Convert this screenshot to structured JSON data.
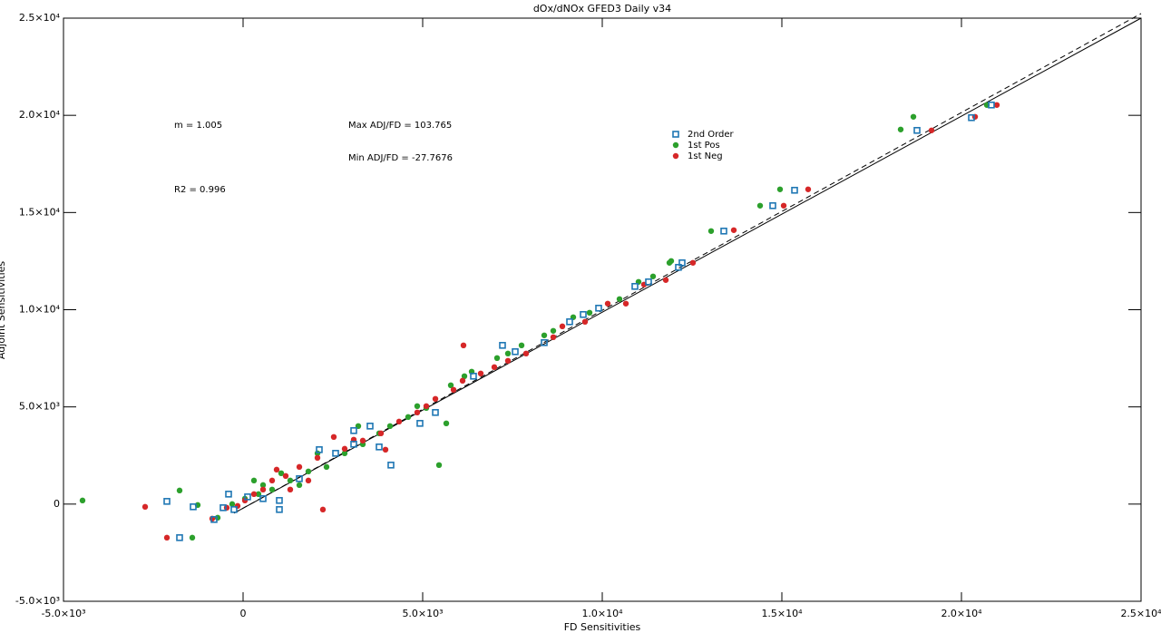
{
  "chart_data": {
    "type": "scatter",
    "title": "dOx/dNOx GFED3 Daily v34",
    "x_label": "FD Sensitivities",
    "y_label": "Adjoint Sensitivities",
    "annotations": [
      "m = 1.005",
      "R2 = 0.996",
      "Max ADJ/FD = 103.765",
      "Min ADJ/FD = -27.7676"
    ],
    "xlim": [
      -5000,
      25000
    ],
    "ylim": [
      -5000,
      25000
    ],
    "xticks": [
      {
        "value": -5000,
        "label": "-5.0×10³"
      },
      0,
      {
        "value": 5000,
        "label": "5.0×10³"
      },
      {
        "value": 10000,
        "label": "1.0×10⁴"
      },
      {
        "value": 15000,
        "label": "1.5×10⁴"
      },
      {
        "value": 20000,
        "label": "2.0×10⁴"
      },
      {
        "value": 25000,
        "label": "2.5×10⁴"
      }
    ],
    "yticks": [
      {
        "value": -5000,
        "label": "-5.0×10³"
      },
      0,
      {
        "value": 5000,
        "label": "5.0×10³"
      },
      {
        "value": 10000,
        "label": "1.0×10⁴"
      },
      {
        "value": 15000,
        "label": "1.5×10⁴"
      },
      {
        "value": 20000,
        "label": "2.0×10⁴"
      },
      {
        "value": 25000,
        "label": "2.5×10⁴"
      }
    ],
    "series": [
      {
        "name": "2nd Order",
        "color": "#1f77b4",
        "marker": "square",
        "x": [
          20833,
          18763,
          20278,
          15354,
          14747,
          13384,
          12222,
          12121,
          11288,
          9470,
          9091,
          7222,
          7576,
          8384,
          6414,
          4924,
          4116,
          3788,
          3535,
          3081,
          3081,
          2121,
          1010,
          1010,
          -1389,
          -2121,
          -1768,
          -808,
          -556,
          -404,
          126,
          556,
          1566,
          2576,
          5354,
          9899,
          10909,
          -253
        ],
        "y": [
          20532,
          19225,
          19879,
          16146,
          15352,
          14046,
          12413,
          12180,
          11433,
          9753,
          9379,
          8166,
          7840,
          8306,
          6580,
          4153,
          2007,
          2940,
          4013,
          3780,
          3080,
          2800,
          187,
          -280,
          -140,
          140,
          -1727,
          -793,
          -187,
          513,
          373,
          280,
          1307,
          2613,
          4713,
          10079,
          11199,
          -280
        ]
      },
      {
        "name": "1st Pos",
        "color": "#2ca02c",
        "marker": "dot",
        "x": [
          -4470,
          -1768,
          -1263,
          -1414,
          -707,
          18662,
          18308,
          20707,
          14949,
          14394,
          13030,
          11869,
          11010,
          10480,
          9192,
          8636,
          7753,
          7071,
          6162,
          5783,
          5455,
          5657,
          5101,
          4596,
          3788,
          3333,
          2828,
          2323,
          1818,
          1313,
          808,
          429,
          51,
          -303,
          1061,
          2071,
          4091,
          4848,
          6364,
          8384,
          9646,
          11414,
          11919,
          7374,
          3207,
          1566,
          556,
          303
        ],
        "y": [
          187,
          700,
          -47,
          -1727,
          -700,
          19925,
          19272,
          20532,
          16192,
          15352,
          14046,
          12413,
          11433,
          10546,
          9613,
          8913,
          8166,
          7513,
          6580,
          6113,
          2007,
          4153,
          4946,
          4480,
          3640,
          3080,
          2613,
          1913,
          1680,
          1213,
          747,
          513,
          280,
          0,
          1587,
          2613,
          4013,
          5040,
          6813,
          8680,
          9846,
          11713,
          12506,
          7746,
          4013,
          980,
          980,
          1213
        ]
      },
      {
        "name": "1st Neg",
        "color": "#d62728",
        "marker": "dot",
        "x": [
          -2727,
          -2121,
          -859,
          20985,
          20379,
          19167,
          15732,
          15051,
          13662,
          12525,
          11768,
          10657,
          9520,
          8636,
          7879,
          6995,
          6136,
          6111,
          5354,
          4848,
          4343,
          3838,
          3965,
          3333,
          2828,
          2525,
          2222,
          2071,
          1566,
          1187,
          808,
          556,
          303,
          51,
          -152,
          -455,
          1313,
          1818,
          934,
          3081,
          5101,
          6616,
          8889,
          10152,
          11162,
          7374,
          5859
        ],
        "y": [
          -140,
          -1727,
          -747,
          20532,
          19925,
          19225,
          16192,
          15352,
          14093,
          12413,
          11526,
          10313,
          9379,
          8586,
          7746,
          7046,
          8166,
          6346,
          5413,
          4713,
          4246,
          3640,
          2800,
          3266,
          2846,
          3453,
          -280,
          2380,
          1913,
          1447,
          1213,
          747,
          513,
          187,
          -93,
          -187,
          747,
          1213,
          1773,
          3313,
          5040,
          6720,
          9146,
          10313,
          11293,
          7373,
          5880
        ]
      }
    ]
  }
}
